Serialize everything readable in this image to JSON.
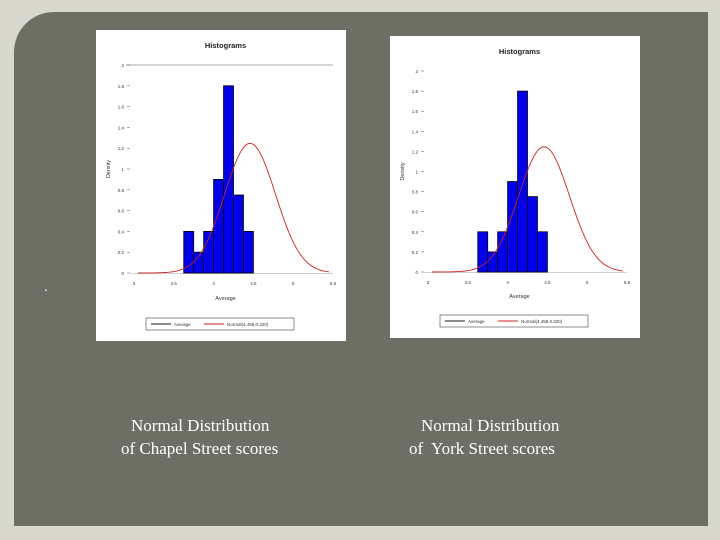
{
  "slide": {
    "bullet": ".",
    "captions": [
      {
        "line1": "Normal Distribution",
        "line2": "of Chapel Street scores"
      },
      {
        "line1": "Normal Distribution",
        "line2": "of  York Street scores"
      }
    ]
  },
  "chart_data": [
    {
      "type": "bar",
      "title": "Histograms",
      "xlabel": "Average",
      "ylabel": "Density",
      "xlim": [
        3,
        5.5
      ],
      "ylim": [
        0,
        2
      ],
      "xticks": [
        "3",
        "3.5",
        "4",
        "4.5",
        "5",
        "5.5"
      ],
      "yticks": [
        "0",
        "0.2",
        "0.4",
        "0.6",
        "0.8",
        "1",
        "1.2",
        "1.4",
        "1.6",
        "1.8",
        "2"
      ],
      "bins": [
        {
          "x0": 3.625,
          "x1": 3.75,
          "density": 0.4
        },
        {
          "x0": 3.75,
          "x1": 3.875,
          "density": 0.2
        },
        {
          "x0": 3.875,
          "x1": 4.0,
          "density": 0.4
        },
        {
          "x0": 4.0,
          "x1": 4.125,
          "density": 0.9
        },
        {
          "x0": 4.125,
          "x1": 4.25,
          "density": 1.8
        },
        {
          "x0": 4.25,
          "x1": 4.375,
          "density": 0.75
        },
        {
          "x0": 4.375,
          "x1": 4.5,
          "density": 0.4
        }
      ],
      "curve": {
        "mean": 4.458,
        "sd": 0.32
      },
      "legend": [
        {
          "name": "Average",
          "color": "#1a1a1a"
        },
        {
          "name": "Normal(4.458,0.320)",
          "color": "#cc2222"
        }
      ],
      "bar_color": "#0000ee",
      "curve_color": "#cc2222",
      "grid": false,
      "legend_position": "bottom"
    },
    {
      "type": "bar",
      "title": "Histograms",
      "xlabel": "Average",
      "ylabel": "Density",
      "xlim": [
        3,
        5.5
      ],
      "ylim": [
        0,
        2
      ],
      "xticks": [
        "3",
        "3.5",
        "4",
        "4.5",
        "5",
        "5.5"
      ],
      "yticks": [
        "0",
        "0.2",
        "0.4",
        "0.6",
        "0.8",
        "1",
        "1.2",
        "1.4",
        "1.6",
        "1.8",
        "2"
      ],
      "bins": [
        {
          "x0": 3.625,
          "x1": 3.75,
          "density": 0.4
        },
        {
          "x0": 3.75,
          "x1": 3.875,
          "density": 0.2
        },
        {
          "x0": 3.875,
          "x1": 4.0,
          "density": 0.4
        },
        {
          "x0": 4.0,
          "x1": 4.125,
          "density": 0.9
        },
        {
          "x0": 4.125,
          "x1": 4.25,
          "density": 1.8
        },
        {
          "x0": 4.25,
          "x1": 4.375,
          "density": 0.75
        },
        {
          "x0": 4.375,
          "x1": 4.5,
          "density": 0.4
        }
      ],
      "curve": {
        "mean": 4.458,
        "sd": 0.32
      },
      "legend": [
        {
          "name": "Average",
          "color": "#1a1a1a"
        },
        {
          "name": "Normal(4.458,0.320)",
          "color": "#cc2222"
        }
      ],
      "bar_color": "#0000ee",
      "curve_color": "#cc2222",
      "grid": false,
      "legend_position": "bottom"
    }
  ]
}
